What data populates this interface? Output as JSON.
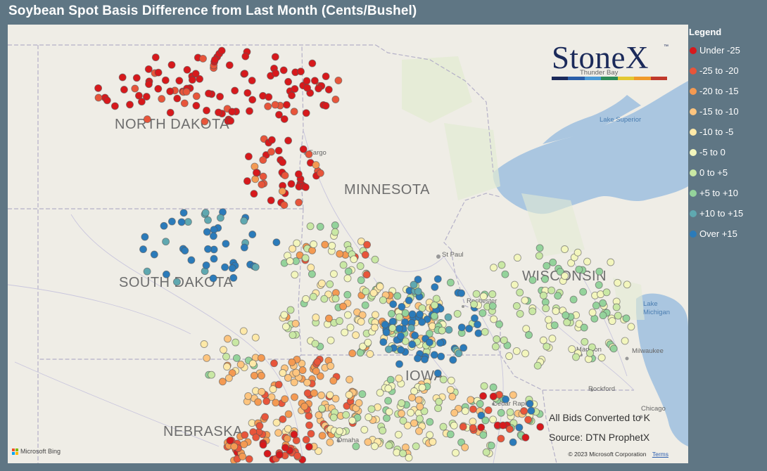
{
  "title": "Soybean Spot Basis Difference from Last Month (Cents/Bushel)",
  "legend": {
    "title": "Legend",
    "items": [
      {
        "label": "Under -25",
        "color": "#d7191c"
      },
      {
        "label": "-25 to -20",
        "color": "#e8553a"
      },
      {
        "label": "-20 to -15",
        "color": "#f49a52"
      },
      {
        "label": "-15 to -10",
        "color": "#fdc57f"
      },
      {
        "label": "-10 to -5",
        "color": "#fee9a8"
      },
      {
        "label": "-5 to 0",
        "color": "#f3f6bd"
      },
      {
        "label": "0 to +5",
        "color": "#c9e8a4"
      },
      {
        "label": "+5 to +10",
        "color": "#94d39b"
      },
      {
        "label": "+10 to +15",
        "color": "#5fa8b0"
      },
      {
        "label": "Over +15",
        "color": "#2b7bba"
      }
    ]
  },
  "logo": {
    "text": "StoneX",
    "tm": "™",
    "bar_colors": [
      "#1b2a5a",
      "#2b5ea8",
      "#4a9ad6",
      "#2e8b57",
      "#e3c832",
      "#f09a2a",
      "#c0392b"
    ]
  },
  "map": {
    "states": [
      "NORTH DAKOTA",
      "MINNESOTA",
      "SOUTH DAKOTA",
      "WISCONSIN",
      "NEBRASKA",
      "IOWA"
    ],
    "cities": [
      "Fargo",
      "St Paul",
      "Rochester",
      "Madison",
      "Milwaukee",
      "Rockford",
      "Chicago",
      "Cedar Rapids",
      "Omaha",
      "Thunder Bay"
    ],
    "water": [
      "Lake Superior",
      "Lake Michigan"
    ]
  },
  "notes": {
    "conversion": "All Bids Converted to K",
    "source": "Source: DTN ProphetX"
  },
  "footer": {
    "bing": "Microsoft Bing",
    "copyright": "© 2023 Microsoft Corporation",
    "terms": "Terms"
  }
}
